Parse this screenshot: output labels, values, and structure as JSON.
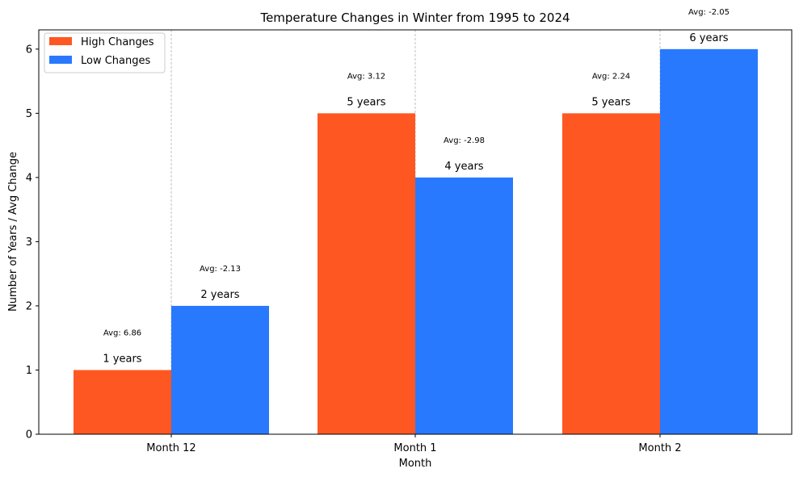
{
  "chart_data": {
    "type": "bar",
    "title": "Temperature Changes in Winter from 1995 to 2024",
    "xlabel": "Month",
    "ylabel": "Number of Years / Avg Change",
    "categories": [
      "Month 12",
      "Month 1",
      "Month 2"
    ],
    "ylim": [
      0,
      6.3
    ],
    "yticks": [
      0,
      1,
      2,
      3,
      4,
      5,
      6
    ],
    "grid": "vertical dashed lines between series",
    "legend_position": "top-left",
    "series": [
      {
        "name": "High Changes",
        "color": "#ff5722",
        "values": [
          1,
          5,
          5
        ],
        "bar_labels": [
          "1 years",
          "5 years",
          "5 years"
        ],
        "avg_labels": [
          "Avg: 6.86",
          "Avg: 3.12",
          "Avg: 2.24"
        ]
      },
      {
        "name": "Low Changes",
        "color": "#2979ff",
        "values": [
          2,
          4,
          6
        ],
        "bar_labels": [
          "2 years",
          "4 years",
          "6 years"
        ],
        "avg_labels": [
          "Avg: -2.13",
          "Avg: -2.98",
          "Avg: -2.05"
        ]
      }
    ]
  }
}
